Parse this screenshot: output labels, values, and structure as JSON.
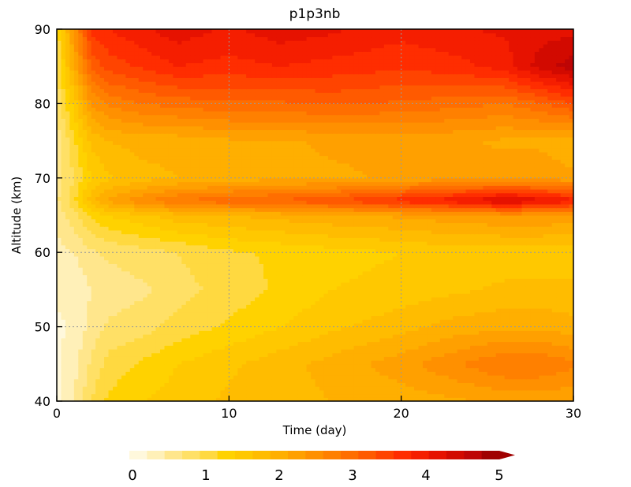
{
  "chart_data": {
    "type": "heatmap",
    "title": "p1p3nb",
    "xlabel": "Time (day)",
    "ylabel": "Altitude (km)",
    "xlim": [
      0,
      30
    ],
    "ylim": [
      40,
      90
    ],
    "x_ticks": [
      0,
      10,
      20,
      30
    ],
    "y_ticks": [
      40,
      50,
      60,
      70,
      80,
      90
    ],
    "grid": "dotted",
    "colorbar": {
      "placement": "bottom",
      "min": 0,
      "max": 5,
      "ticks": [
        0,
        1,
        2,
        3,
        4,
        5
      ],
      "extend": "max",
      "colors": [
        "#fff8dc",
        "#fff0b8",
        "#ffe68c",
        "#ffe066",
        "#ffd940",
        "#ffd200",
        "#ffc800",
        "#ffbc00",
        "#ffaf00",
        "#ffa000",
        "#ff9000",
        "#ff8000",
        "#ff6e00",
        "#ff5a00",
        "#ff4400",
        "#ff2d00",
        "#f51e00",
        "#e61200",
        "#d20a00",
        "#be0505",
        "#a00000"
      ]
    },
    "altitudes": [
      40,
      45,
      50,
      55,
      60,
      65,
      67,
      70,
      75,
      80,
      85,
      90
    ],
    "times": [
      0,
      1,
      2,
      3,
      5,
      7,
      10,
      13,
      16,
      20,
      23,
      26,
      28,
      30
    ],
    "values": [
      [
        0.2,
        0.5,
        1.0,
        1.3,
        1.5,
        1.6,
        1.8,
        1.9,
        2.0,
        2.1,
        2.2,
        2.3,
        2.3,
        2.3
      ],
      [
        0.2,
        0.4,
        0.8,
        1.1,
        1.3,
        1.5,
        1.7,
        1.9,
        2.1,
        2.4,
        2.7,
        3.0,
        3.0,
        2.8
      ],
      [
        0.2,
        0.3,
        0.6,
        0.8,
        0.9,
        1.1,
        1.3,
        1.5,
        1.7,
        1.9,
        2.1,
        2.2,
        2.2,
        2.1
      ],
      [
        0.3,
        0.3,
        0.5,
        0.6,
        0.7,
        0.9,
        1.1,
        1.3,
        1.5,
        1.6,
        1.7,
        1.8,
        1.8,
        1.8
      ],
      [
        0.4,
        0.5,
        0.7,
        0.8,
        0.9,
        1.0,
        1.2,
        1.3,
        1.4,
        1.5,
        1.6,
        1.6,
        1.6,
        1.6
      ],
      [
        0.6,
        0.9,
        1.3,
        1.5,
        1.7,
        1.9,
        2.0,
        2.1,
        2.2,
        2.3,
        2.4,
        2.5,
        2.5,
        2.4
      ],
      [
        0.7,
        1.2,
        1.9,
        2.3,
        2.7,
        3.0,
        3.2,
        3.3,
        3.5,
        3.9,
        4.2,
        4.6,
        4.4,
        4.1
      ],
      [
        0.6,
        1.0,
        1.5,
        1.7,
        1.9,
        2.0,
        2.1,
        2.2,
        2.2,
        2.3,
        2.4,
        2.4,
        2.4,
        2.3
      ],
      [
        0.6,
        1.2,
        1.8,
        2.0,
        2.1,
        2.1,
        2.2,
        2.2,
        2.3,
        2.3,
        2.3,
        2.2,
        2.2,
        2.1
      ],
      [
        0.8,
        1.6,
        2.5,
        2.8,
        3.0,
        3.1,
        3.2,
        3.2,
        3.3,
        3.2,
        3.1,
        3.0,
        3.2,
        3.5
      ],
      [
        1.0,
        2.2,
        3.3,
        3.6,
        3.8,
        4.0,
        3.9,
        4.0,
        3.9,
        3.8,
        3.9,
        4.1,
        4.6,
        4.9
      ],
      [
        1.1,
        2.6,
        3.8,
        4.0,
        4.2,
        4.4,
        4.2,
        4.4,
        4.3,
        4.1,
        4.2,
        4.3,
        4.4,
        4.4
      ]
    ]
  }
}
